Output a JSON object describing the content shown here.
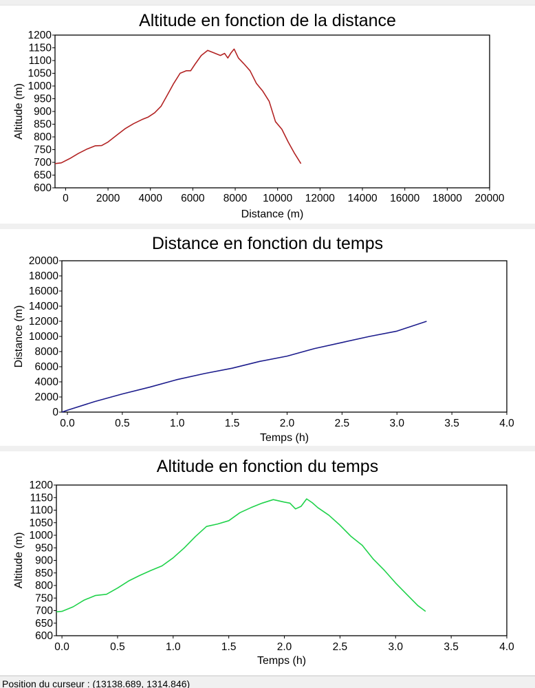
{
  "status_bar": {
    "label": "Position du curseur :",
    "value": "(13138.689, 1314.846)"
  },
  "chart_data": [
    {
      "type": "line",
      "title": "Altitude en fonction de la distance",
      "xlabel": "Distance (m)",
      "ylabel": "Altitude (m)",
      "xlim": [
        -500,
        20000
      ],
      "ylim": [
        600,
        1200
      ],
      "xticks": [
        0,
        2000,
        4000,
        6000,
        8000,
        10000,
        12000,
        14000,
        16000,
        18000,
        20000
      ],
      "yticks": [
        600,
        650,
        700,
        750,
        800,
        850,
        900,
        950,
        1000,
        1050,
        1100,
        1150,
        1200
      ],
      "grid": false,
      "color": "#b22222",
      "series": [
        {
          "x": [
            -500,
            -200,
            200,
            600,
            1000,
            1400,
            1700,
            2000,
            2400,
            2800,
            3200,
            3600,
            3900,
            4200,
            4500,
            4800,
            5100,
            5400,
            5700,
            5900,
            6100,
            6400,
            6700,
            7000,
            7300,
            7500,
            7650,
            7800,
            7950,
            8150,
            8400,
            8700,
            9000,
            9300,
            9600,
            9900,
            10200,
            10500,
            10800,
            11100
          ],
          "y": [
            695,
            698,
            715,
            735,
            752,
            765,
            766,
            780,
            806,
            832,
            852,
            868,
            878,
            895,
            920,
            965,
            1010,
            1050,
            1060,
            1060,
            1085,
            1120,
            1140,
            1130,
            1120,
            1128,
            1110,
            1130,
            1145,
            1110,
            1088,
            1060,
            1010,
            980,
            940,
            860,
            830,
            780,
            735,
            695
          ]
        }
      ]
    },
    {
      "type": "line",
      "title": "Distance en fonction du temps",
      "xlabel": "Temps (h)",
      "ylabel": "Distance (m)",
      "xlim": [
        -0.05,
        4.0
      ],
      "ylim": [
        0,
        20000
      ],
      "xticks": [
        0.0,
        0.5,
        1.0,
        1.5,
        2.0,
        2.5,
        3.0,
        3.5,
        4.0
      ],
      "yticks": [
        0,
        2000,
        4000,
        6000,
        8000,
        10000,
        12000,
        14000,
        16000,
        18000,
        20000
      ],
      "grid": false,
      "color": "#1c1c8c",
      "series": [
        {
          "x": [
            -0.05,
            0.0,
            0.25,
            0.5,
            0.75,
            1.0,
            1.25,
            1.5,
            1.75,
            2.0,
            2.25,
            2.5,
            2.75,
            3.0,
            3.27
          ],
          "y": [
            0,
            250,
            1400,
            2400,
            3300,
            4300,
            5100,
            5800,
            6700,
            7400,
            8400,
            9200,
            10000,
            10700,
            12000
          ]
        }
      ]
    },
    {
      "type": "line",
      "title": "Altitude en fonction du temps",
      "xlabel": "Temps (h)",
      "ylabel": "Altitude (m)",
      "xlim": [
        -0.05,
        4.0
      ],
      "ylim": [
        600,
        1200
      ],
      "xticks": [
        0.0,
        0.5,
        1.0,
        1.5,
        2.0,
        2.5,
        3.0,
        3.5,
        4.0
      ],
      "yticks": [
        600,
        650,
        700,
        750,
        800,
        850,
        900,
        950,
        1000,
        1050,
        1100,
        1150,
        1200
      ],
      "grid": false,
      "color": "#1fd24a",
      "series": [
        {
          "x": [
            -0.05,
            0.0,
            0.1,
            0.2,
            0.3,
            0.4,
            0.5,
            0.6,
            0.7,
            0.8,
            0.9,
            1.0,
            1.1,
            1.2,
            1.3,
            1.4,
            1.5,
            1.6,
            1.7,
            1.8,
            1.9,
            2.0,
            2.05,
            2.1,
            2.15,
            2.2,
            2.25,
            2.3,
            2.4,
            2.5,
            2.6,
            2.7,
            2.8,
            2.9,
            3.0,
            3.1,
            3.2,
            3.27
          ],
          "y": [
            695,
            697,
            715,
            742,
            760,
            765,
            790,
            818,
            840,
            860,
            878,
            910,
            950,
            995,
            1035,
            1045,
            1058,
            1090,
            1110,
            1128,
            1142,
            1132,
            1128,
            1105,
            1115,
            1145,
            1130,
            1110,
            1080,
            1040,
            995,
            960,
            905,
            860,
            810,
            765,
            720,
            697
          ]
        }
      ]
    }
  ]
}
